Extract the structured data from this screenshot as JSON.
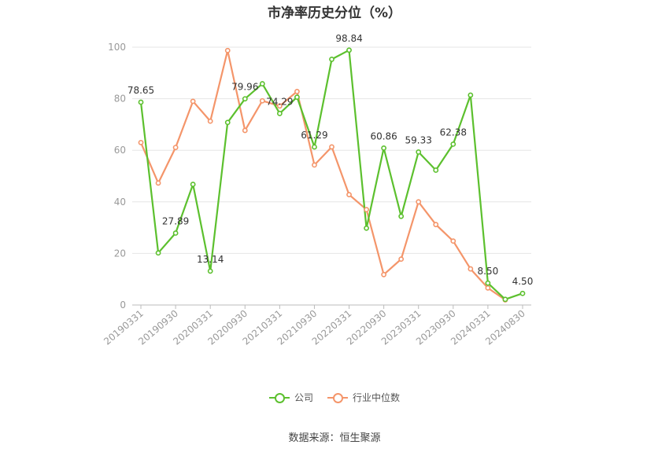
{
  "title": "市净率历史分位（%）",
  "source": "数据来源：恒生聚源",
  "colors": {
    "company": "#5cc02e",
    "industry": "#f4956a",
    "grid": "#e6e6e6",
    "axis": "#999999"
  },
  "chart_data": {
    "type": "line",
    "title": "市净率历史分位（%）",
    "xlabel": "",
    "ylabel": "",
    "ylim": [
      0,
      100
    ],
    "yticks": [
      0,
      20,
      40,
      60,
      80,
      100
    ],
    "grid": true,
    "legend_position": "bottom",
    "x": [
      "20190331",
      "20190630",
      "20190930",
      "20191231",
      "20200331",
      "20200630",
      "20200930",
      "20201231",
      "20210331",
      "20210630",
      "20210930",
      "20211231",
      "20220331",
      "20220630",
      "20220930",
      "20221231",
      "20230331",
      "20230630",
      "20230930",
      "20231231",
      "20240331",
      "20240630",
      "20240830"
    ],
    "xticklabels": [
      "20190331",
      "20190930",
      "20200331",
      "20200930",
      "20210331",
      "20210930",
      "20220331",
      "20220930",
      "20230331",
      "20230930",
      "20240331",
      "20240830"
    ],
    "series": [
      {
        "name": "公司",
        "values": [
          78.65,
          20.2,
          27.89,
          46.8,
          13.14,
          70.8,
          79.96,
          85.8,
          74.29,
          80.6,
          61.29,
          95.3,
          98.84,
          29.8,
          60.86,
          34.4,
          59.33,
          52.3,
          62.38,
          81.4,
          8.5,
          2.2,
          4.5
        ],
        "labels": {
          "0": "78.65",
          "2": "27.89",
          "4": "13.14",
          "6": "79.96",
          "8": "74.29",
          "10": "61.29",
          "12": "98.84",
          "14": "60.86",
          "16": "59.33",
          "18": "62.38",
          "20": "8.50",
          "22": "4.50"
        }
      },
      {
        "name": "行业中位数",
        "values": [
          63.0,
          47.3,
          61.1,
          79.0,
          71.3,
          98.7,
          67.7,
          79.2,
          77.2,
          82.8,
          54.3,
          61.3,
          42.8,
          37.0,
          11.8,
          17.8,
          40.0,
          31.2,
          24.8,
          14.0,
          6.6,
          2.0,
          null
        ]
      }
    ]
  }
}
